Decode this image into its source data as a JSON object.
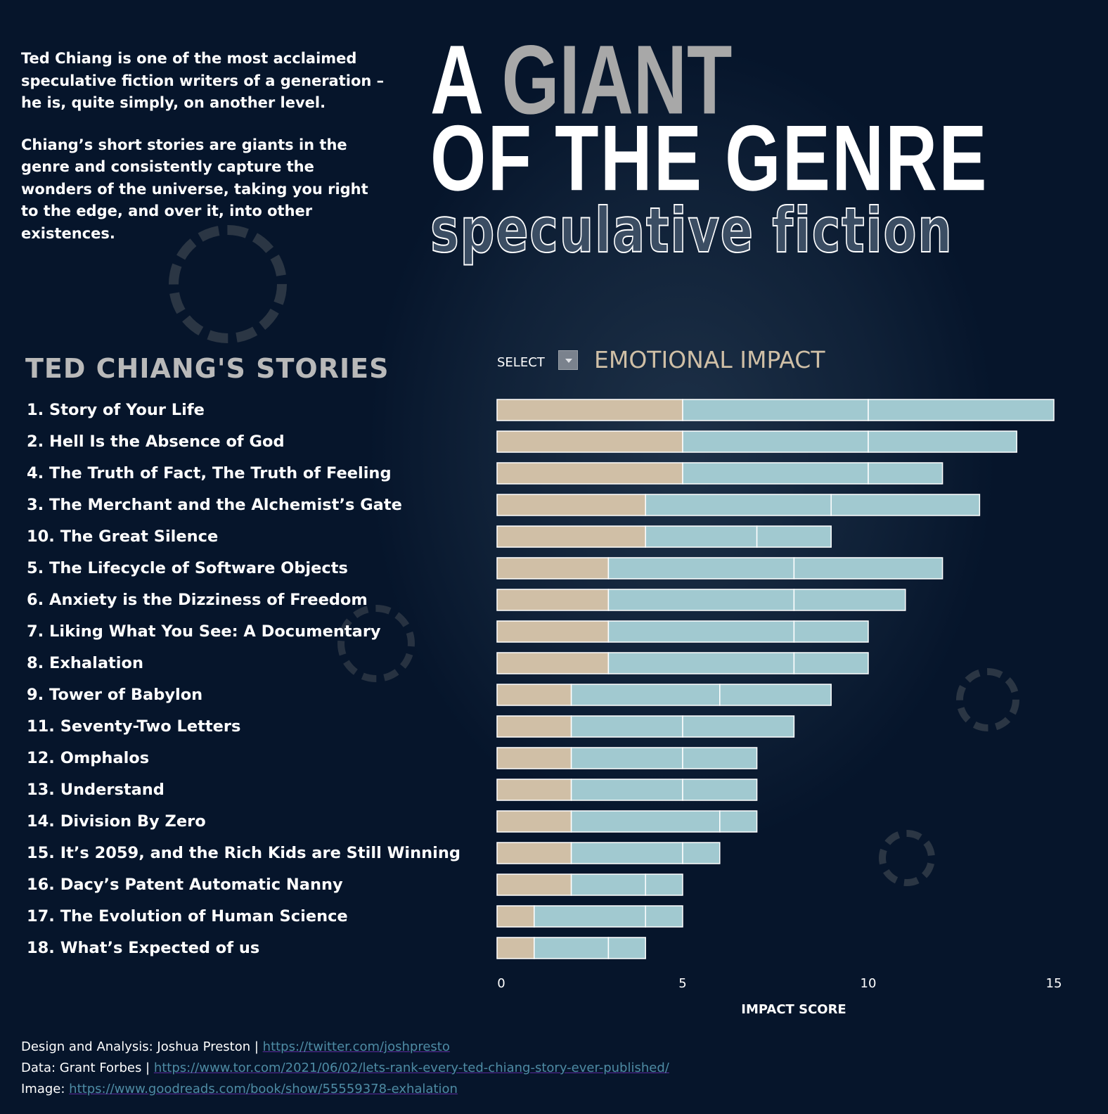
{
  "intro": {
    "p1": "Ted Chiang is one of the most acclaimed speculative fiction writers of a generation – he is, quite simply, on another level.",
    "p2": "Chiang’s short stories are giants in the genre and consistently capture the wonders of the universe, taking you right to the edge, and over it, into other existences."
  },
  "title": {
    "a": "A",
    "giant": "GIANT",
    "line2": "OF THE GENRE",
    "line3": "speculative fiction"
  },
  "stories_heading": "TED CHIANG'S STORIES",
  "selector": {
    "label": "SELECT",
    "value": "EMOTIONAL IMPACT"
  },
  "colors": {
    "background": "#06152b",
    "segment_1": "#d0bfa6",
    "segment_2": "#a1c9d0",
    "segment_3": "#a1c9d0",
    "measure": "#cfbfa6"
  },
  "chart_data": {
    "type": "bar",
    "orientation": "horizontal",
    "stacked": true,
    "categories": [
      "1. Story of Your Life",
      "2. Hell Is the Absence of God",
      "4. The Truth of Fact, The Truth of Feeling",
      "3. The Merchant and the Alchemist’s Gate",
      "10. The Great Silence",
      "5. The Lifecycle of Software Objects",
      "6. Anxiety is the Dizziness of Freedom",
      "7. Liking What You See: A Documentary",
      "8. Exhalation",
      "9. Tower of Babylon",
      "11. Seventy-Two Letters",
      "12. Omphalos",
      "13. Understand",
      "14. Division By Zero",
      "15. It’s 2059, and the Rich Kids are Still Winning",
      "16. Dacy’s Patent Automatic Nanny",
      "17. The Evolution of Human Science",
      "18. What’s Expected of us"
    ],
    "series": [
      {
        "values": [
          5,
          5,
          5,
          4,
          4,
          3,
          3,
          3,
          3,
          2,
          2,
          2,
          2,
          2,
          2,
          2,
          1,
          1
        ]
      },
      {
        "values": [
          5,
          5,
          5,
          5,
          3,
          5,
          5,
          5,
          5,
          4,
          3,
          3,
          3,
          4,
          3,
          2,
          3,
          2
        ]
      },
      {
        "values": [
          5,
          4,
          2,
          4,
          2,
          4,
          3,
          2,
          2,
          3,
          3,
          2,
          2,
          1,
          1,
          1,
          1,
          1
        ]
      }
    ],
    "xlabel": "IMPACT SCORE",
    "xlim": [
      0,
      15
    ],
    "xticks": [
      "0",
      "5",
      "10",
      "15"
    ],
    "grid": false
  },
  "footer": {
    "design_label": "Design and Analysis: Joshua Preston | ",
    "design_link": "https://twitter.com/joshpresto",
    "data_label": "Data: Grant Forbes | ",
    "data_link": "https://www.tor.com/2021/06/02/lets-rank-every-ted-chiang-story-ever-published/",
    "image_label": "Image: ",
    "image_link": "https://www.goodreads.com/book/show/55559378-exhalation"
  }
}
